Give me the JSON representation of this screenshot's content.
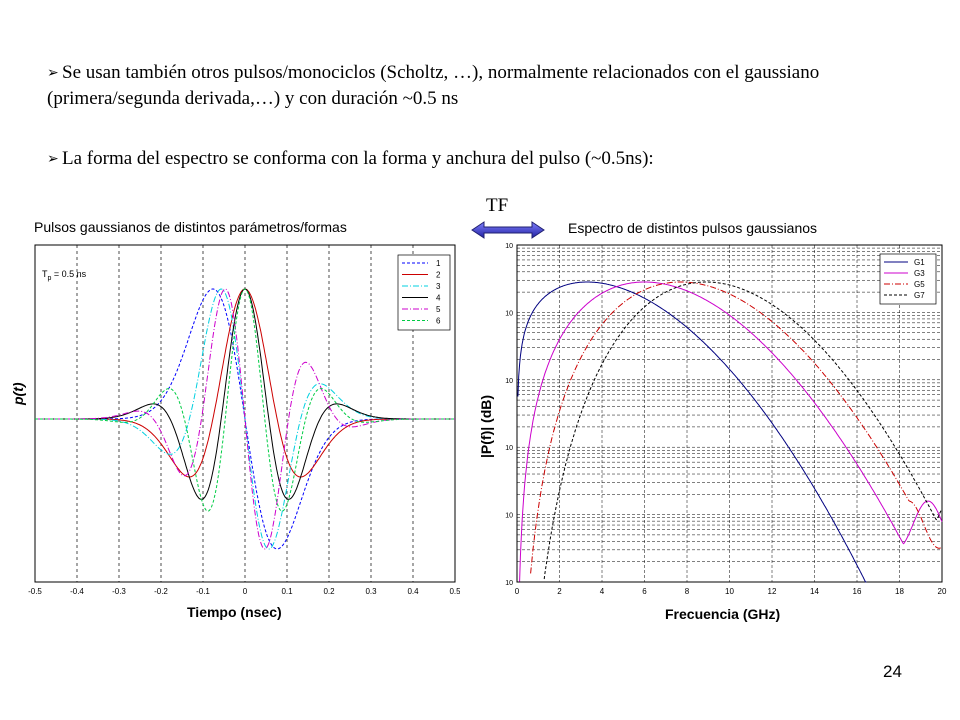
{
  "bullets": [
    "Se usan también otros pulsos/monociclos (Scholtz, …), normalmente relacionados con el gaussiano (primera/segunda derivada,…) y con duración ~0.5 ns",
    "La forma del espectro se conforma con  la forma y anchura del pulso (~0.5ns):"
  ],
  "tf_label": "TF",
  "page_number": "24",
  "chart_data": [
    {
      "type": "line",
      "title": "Pulsos gaussianos de distintos parámetros/formas",
      "xlabel": "Tiempo (nsec)",
      "ylabel": "p(t)",
      "annotation": "T_p = 0.5 ns",
      "xlim": [
        -0.5,
        0.5
      ],
      "xticks": [
        "-0.5",
        "-0.4",
        "-0.3",
        "-0.2",
        "-0.1",
        "0",
        "0.1",
        "0.2",
        "0.3",
        "0.4",
        "0.5"
      ],
      "grid": "vertical-dashed",
      "legend_position": "top-right",
      "series": [
        {
          "name": "1",
          "color": "#0000ff",
          "style": "dashed",
          "shape": "first-derivative"
        },
        {
          "name": "2",
          "color": "#cc0000",
          "style": "solid",
          "shape": "second-derivative"
        },
        {
          "name": "3",
          "color": "#00d0e0",
          "style": "dashdot",
          "shape": "third-derivative"
        },
        {
          "name": "4",
          "color": "#000000",
          "style": "solid",
          "shape": "fourth-derivative"
        },
        {
          "name": "5",
          "color": "#cc00cc",
          "style": "dashdot",
          "shape": "fifth-derivative"
        },
        {
          "name": "6",
          "color": "#00cc44",
          "style": "dashed",
          "shape": "sixth-derivative"
        }
      ]
    },
    {
      "type": "line",
      "title": "Espectro de distintos pulsos gaussianos",
      "xlabel": "Frecuencia (GHz)",
      "ylabel": "|P(f)| (dB)",
      "xlim": [
        0,
        20
      ],
      "xticks": [
        "0",
        "2",
        "4",
        "6",
        "8",
        "10",
        "12",
        "14",
        "16",
        "18",
        "20"
      ],
      "yscale": "log",
      "yticks": [
        "10",
        "10",
        "10",
        "10",
        "10",
        "10"
      ],
      "grid": "on-dashed",
      "legend_position": "top-right",
      "series": [
        {
          "name": "G1",
          "color": "#000080",
          "style": "solid",
          "peak_ghz": 3.3
        },
        {
          "name": "G3",
          "color": "#cc00cc",
          "style": "solid",
          "peak_ghz": 6.0
        },
        {
          "name": "G5",
          "color": "#cc0000",
          "style": "dashdot",
          "peak_ghz": 7.7
        },
        {
          "name": "G7",
          "color": "#000000",
          "style": "dashed",
          "peak_ghz": 8.9
        }
      ]
    }
  ]
}
